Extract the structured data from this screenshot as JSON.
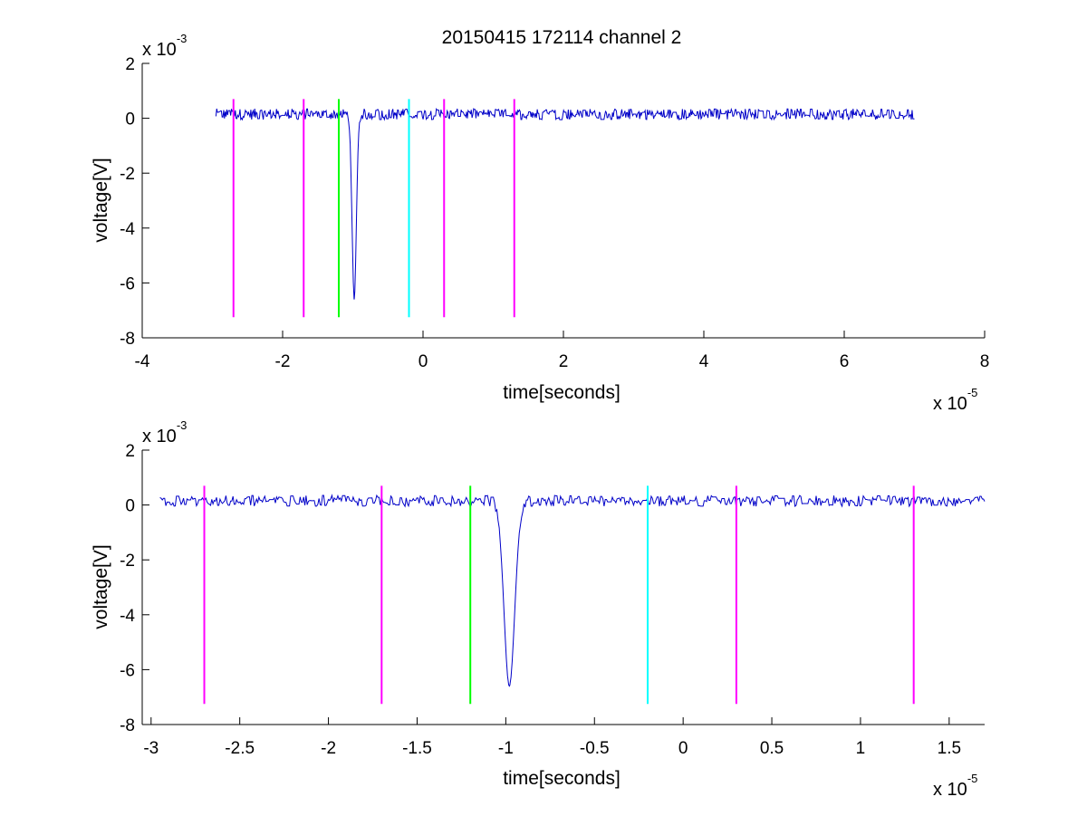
{
  "chart_data": [
    {
      "type": "line",
      "title": "20150415 172114 channel 2",
      "xlabel": "time[seconds]",
      "ylabel": "voltage[V]",
      "x_multiplier": "x 10",
      "x_multiplier_exp": "-5",
      "y_multiplier": "x 10",
      "y_multiplier_exp": "-3",
      "xlim": [
        -4,
        8
      ],
      "ylim": [
        -8,
        2
      ],
      "x_ticks": [
        "-4",
        "-2",
        "0",
        "2",
        "4",
        "6",
        "8"
      ],
      "y_ticks": [
        "2",
        "0",
        "-2",
        "-4",
        "-6",
        "-8"
      ],
      "grid": false,
      "signal": {
        "color": "#0000c8",
        "x_start": -2.95,
        "x_end": 7.0,
        "baseline": 0.15,
        "noise_amplitude": 0.2,
        "pulse_center": -0.98,
        "pulse_min": -6.6
      },
      "markers": [
        {
          "x": -2.7,
          "color": "#ff00ff"
        },
        {
          "x": -1.7,
          "color": "#ff00ff"
        },
        {
          "x": -1.2,
          "color": "#00ff00"
        },
        {
          "x": -0.2,
          "color": "#00ffff"
        },
        {
          "x": 0.3,
          "color": "#ff00ff"
        },
        {
          "x": 1.3,
          "color": "#ff00ff"
        }
      ],
      "marker_range": [
        -7.25,
        0.7
      ]
    },
    {
      "type": "line",
      "title": "",
      "xlabel": "time[seconds]",
      "ylabel": "voltage[V]",
      "x_multiplier": "x 10",
      "x_multiplier_exp": "-5",
      "y_multiplier": "x 10",
      "y_multiplier_exp": "-3",
      "xlim": [
        -3.05,
        1.7
      ],
      "ylim": [
        -8,
        2
      ],
      "x_ticks": [
        "-3",
        "-2.5",
        "-2",
        "-1.5",
        "-1",
        "-0.5",
        "0",
        "0.5",
        "1",
        "1.5"
      ],
      "y_ticks": [
        "2",
        "0",
        "-2",
        "-4",
        "-6",
        "-8"
      ],
      "grid": false,
      "signal": {
        "color": "#0000c8",
        "x_start": -2.95,
        "x_end": 1.7,
        "baseline": 0.15,
        "noise_amplitude": 0.2,
        "pulse_center": -0.98,
        "pulse_min": -6.6
      },
      "markers": [
        {
          "x": -2.7,
          "color": "#ff00ff"
        },
        {
          "x": -1.7,
          "color": "#ff00ff"
        },
        {
          "x": -1.2,
          "color": "#00ff00"
        },
        {
          "x": -0.2,
          "color": "#00ffff"
        },
        {
          "x": 0.3,
          "color": "#ff00ff"
        },
        {
          "x": 1.3,
          "color": "#ff00ff"
        }
      ],
      "marker_range": [
        -7.25,
        0.7
      ]
    }
  ]
}
